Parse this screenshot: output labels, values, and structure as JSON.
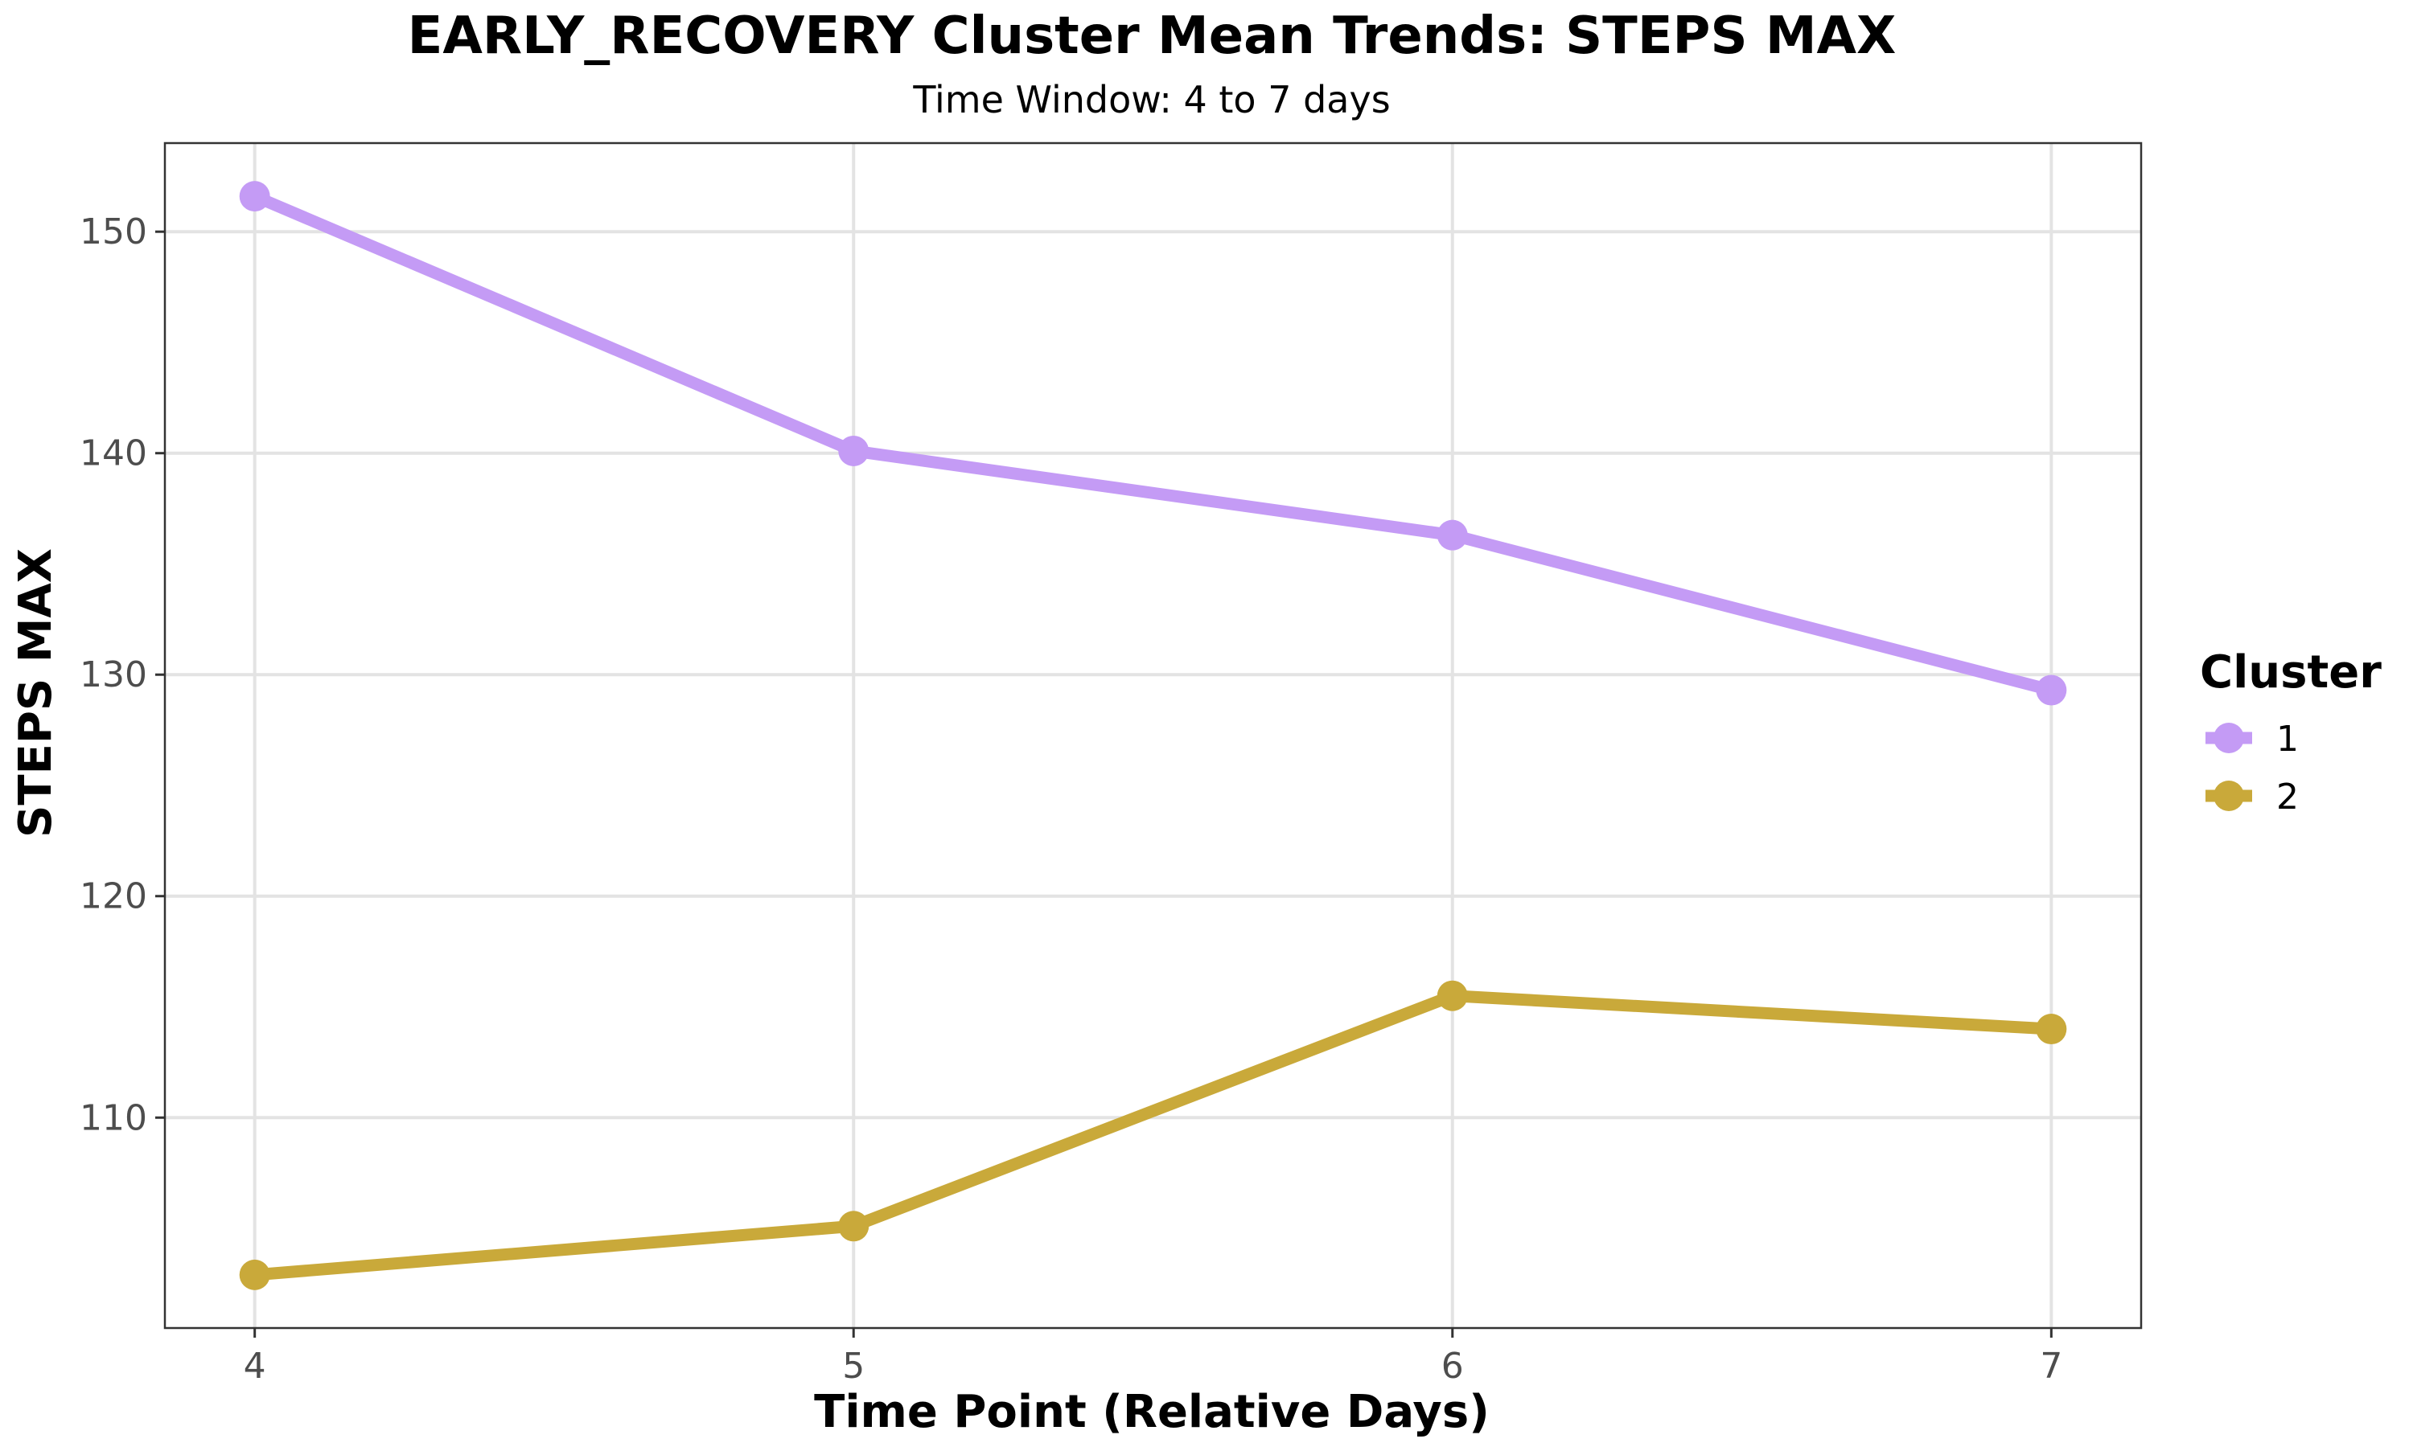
{
  "chart_data": {
    "type": "line",
    "title": "EARLY_RECOVERY Cluster Mean Trends: STEPS MAX",
    "subtitle": "Time Window: 4 to 7 days",
    "xlabel": "Time Point (Relative Days)",
    "ylabel": "STEPS MAX",
    "x": [
      4,
      5,
      6,
      7
    ],
    "xlim": [
      3.85,
      7.15
    ],
    "ylim": [
      100.5,
      154
    ],
    "x_ticks": [
      "4",
      "5",
      "6",
      "7"
    ],
    "y_ticks": [
      "110",
      "120",
      "130",
      "140",
      "150"
    ],
    "grid": true,
    "legend": {
      "title": "Cluster",
      "placement": "right"
    },
    "series": [
      {
        "name": "1",
        "color": "#c49bf5",
        "values": [
          151.6,
          140.1,
          136.3,
          129.3
        ]
      },
      {
        "name": "2",
        "color": "#c9a93a",
        "values": [
          102.9,
          105.1,
          115.5,
          114.0
        ]
      }
    ]
  }
}
